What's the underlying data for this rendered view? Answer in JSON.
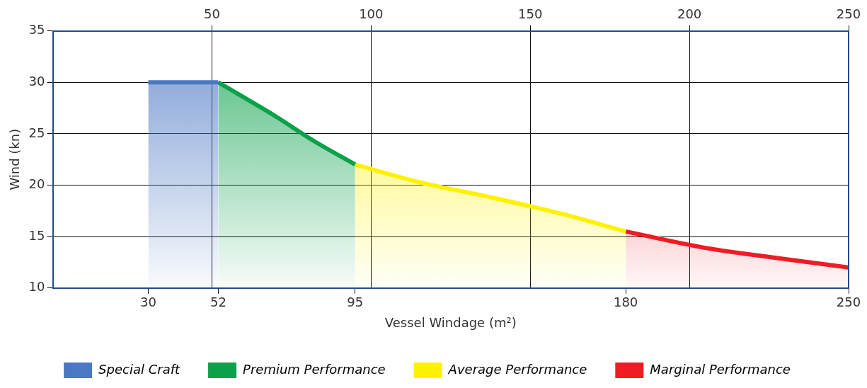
{
  "chart_data": {
    "type": "area",
    "xlabel": "Vessel Windage (m²)",
    "ylabel": "Wind (kn)",
    "xlim": [
      0,
      250
    ],
    "xticks": [
      30,
      52,
      95,
      180,
      250
    ],
    "x2lim": [
      0,
      250
    ],
    "x2ticks": [
      50,
      100,
      150,
      200,
      250
    ],
    "ylim": [
      10,
      35
    ],
    "yticks": [
      10,
      15,
      20,
      25,
      30,
      35
    ],
    "grid": true,
    "legend": "bottom",
    "series": [
      {
        "name": "Special Craft",
        "color": "#4a78c4",
        "x": [
          30,
          52
        ],
        "values": [
          30,
          30
        ]
      },
      {
        "name": "Premium Performance",
        "color": "#0aa14b",
        "x": [
          52,
          70,
          82,
          95
        ],
        "values": [
          30,
          26.7,
          24.3,
          22
        ]
      },
      {
        "name": "Average Performance",
        "color": "#fff200",
        "x": [
          95,
          115,
          138,
          160,
          180
        ],
        "values": [
          22,
          20.3,
          18.8,
          17.2,
          15.5
        ]
      },
      {
        "name": "Marginal Performance",
        "color": "#ee1c25",
        "x": [
          180,
          205,
          228,
          250
        ],
        "values": [
          15.5,
          13.9,
          12.9,
          12
        ]
      }
    ]
  }
}
